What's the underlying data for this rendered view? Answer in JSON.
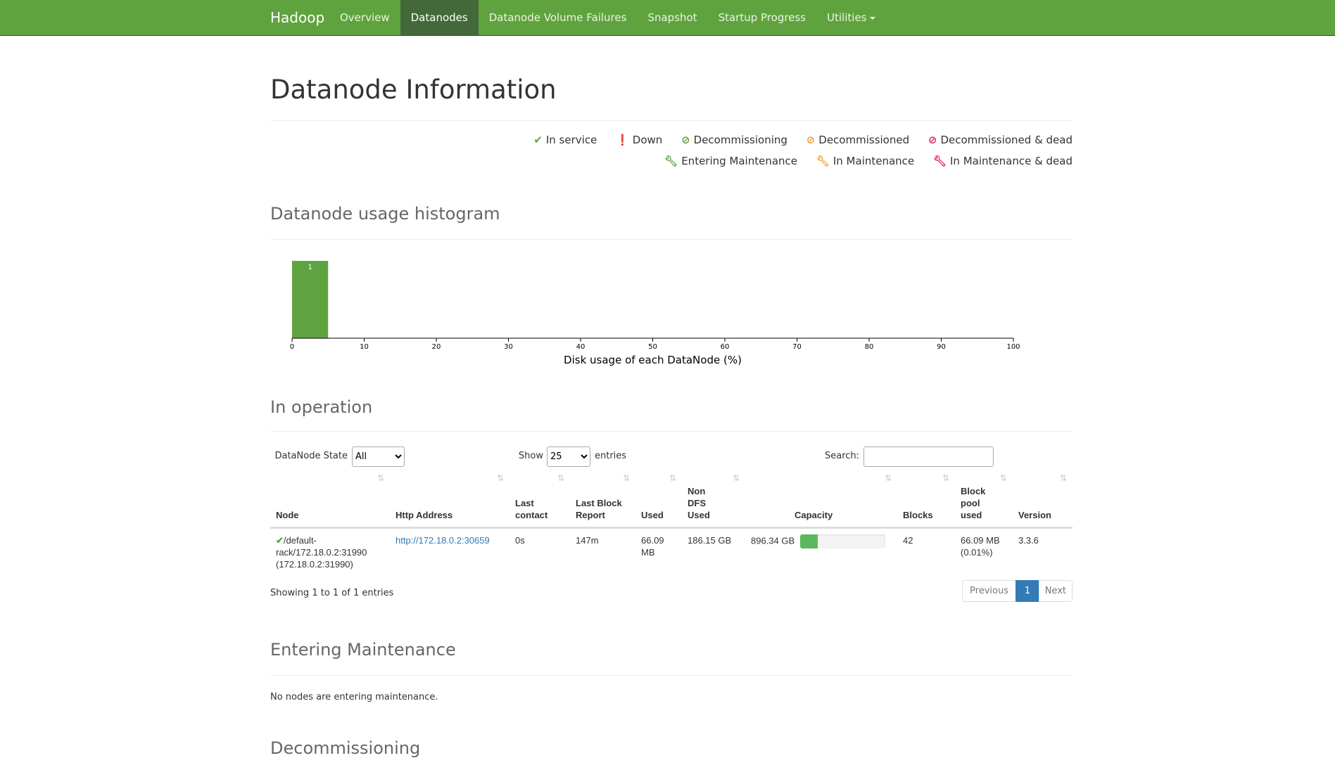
{
  "nav": {
    "brand": "Hadoop",
    "items": [
      "Overview",
      "Datanodes",
      "Datanode Volume Failures",
      "Snapshot",
      "Startup Progress",
      "Utilities"
    ],
    "active": "Datanodes"
  },
  "title": "Datanode Information",
  "legend": [
    {
      "icon": "check-icon",
      "label": "In service",
      "color": "#5fa33e"
    },
    {
      "icon": "exclamation-circle-icon",
      "label": "Down",
      "color": "#d9254f"
    },
    {
      "icon": "ban-icon",
      "label": "Decommissioning",
      "color": "#5fa33e"
    },
    {
      "icon": "ban-icon",
      "label": "Decommissioned",
      "color": "#f0a030"
    },
    {
      "icon": "ban-icon",
      "label": "Decommissioned & dead",
      "color": "#d9254f"
    },
    {
      "icon": "wrench-icon",
      "label": "Entering Maintenance",
      "color": "#5fa33e"
    },
    {
      "icon": "wrench-icon",
      "label": "In Maintenance",
      "color": "#f0a030"
    },
    {
      "icon": "wrench-icon",
      "label": "In Maintenance & dead",
      "color": "#d9254f"
    }
  ],
  "histogram": {
    "heading": "Datanode usage histogram",
    "chart_data": {
      "type": "bar",
      "xlabel": "Disk usage of each DataNode (%)",
      "xlim": [
        0,
        100
      ],
      "ticks": [
        "0",
        "10",
        "20",
        "30",
        "40",
        "50",
        "60",
        "70",
        "80",
        "90",
        "100"
      ],
      "bins": [
        {
          "from": 0,
          "to": 5,
          "count": 1,
          "label": "1"
        }
      ],
      "color": "#5fa341"
    }
  },
  "operation": {
    "heading": "In operation",
    "state_label": "DataNode State",
    "state_value": "All",
    "show_label": "Show",
    "show_value": "25",
    "entries_label": "entries",
    "search_label": "Search:",
    "search_value": "",
    "columns": [
      "Node",
      "Http Address",
      "Last contact",
      "Last Block Report",
      "Used",
      "Non DFS Used",
      "Capacity",
      "Blocks",
      "Block pool used",
      "Version"
    ],
    "rows": [
      {
        "node_line1": "/default-",
        "node_line2": "rack/172.18.0.2:31990",
        "node_line3": "(172.18.0.2:31990)",
        "http": "http://172.18.0.2:30659",
        "last_contact": "0s",
        "last_block_report": "147m",
        "used": "66.09 MB",
        "non_dfs_used": "186.15 GB",
        "capacity": "896.34 GB",
        "capacity_used_percent": 21,
        "blocks": "42",
        "block_pool_used": "66.09 MB",
        "block_pool_pct": "(0.01%)",
        "version": "3.3.6"
      }
    ],
    "showing": "Showing 1 to 1 of 1 entries",
    "prev": "Previous",
    "page": "1",
    "next": "Next"
  },
  "entering": {
    "heading": "Entering Maintenance",
    "empty": "No nodes are entering maintenance."
  },
  "decommissioning": {
    "heading": "Decommissioning"
  }
}
